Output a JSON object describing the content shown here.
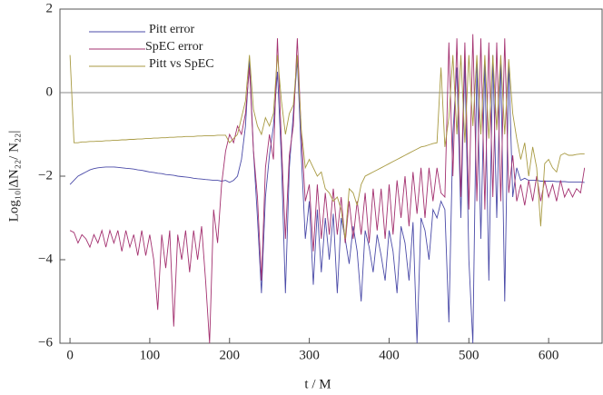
{
  "chart_data": {
    "type": "line",
    "xlabel": "t / M",
    "ylabel": "Log₁₀|ΔN₂₂/ N₂₂|",
    "xlim": [
      -12.6,
      667
    ],
    "ylim": [
      -6,
      2
    ],
    "xticks": [
      0,
      100,
      200,
      300,
      400,
      500,
      600
    ],
    "yticks": [
      {
        "value": -6,
        "label": "−6"
      },
      {
        "value": -4,
        "label": "−4"
      },
      {
        "value": -2,
        "label": "−2"
      },
      0,
      2
    ],
    "hline": 0,
    "legend": "upper left",
    "x": [
      0,
      5,
      10,
      15,
      20,
      25,
      30,
      35,
      40,
      45,
      50,
      55,
      60,
      65,
      70,
      75,
      80,
      85,
      90,
      95,
      100,
      105,
      110,
      115,
      120,
      125,
      130,
      135,
      140,
      145,
      150,
      155,
      160,
      165,
      170,
      175,
      180,
      185,
      190,
      195,
      200,
      205,
      210,
      215,
      220,
      225,
      230,
      235,
      240,
      245,
      250,
      255,
      260,
      265,
      270,
      275,
      280,
      285,
      290,
      295,
      300,
      305,
      310,
      315,
      320,
      325,
      330,
      335,
      340,
      345,
      350,
      355,
      360,
      365,
      370,
      375,
      380,
      385,
      390,
      395,
      400,
      405,
      410,
      415,
      420,
      425,
      430,
      435,
      440,
      445,
      450,
      455,
      460,
      465,
      470,
      475,
      480,
      485,
      490,
      495,
      500,
      505,
      510,
      515,
      520,
      525,
      530,
      535,
      540,
      545,
      550,
      555,
      560,
      565,
      570,
      575,
      580,
      585,
      590,
      595,
      600,
      605,
      610,
      615,
      620,
      625,
      630,
      635,
      640,
      645
    ],
    "series": [
      {
        "name": "Pitt error",
        "color": "#4b4ba8",
        "values": [
          -2.2,
          -2.1,
          -2.0,
          -1.95,
          -1.9,
          -1.85,
          -1.82,
          -1.8,
          -1.79,
          -1.78,
          -1.78,
          -1.78,
          -1.79,
          -1.8,
          -1.81,
          -1.82,
          -1.83,
          -1.85,
          -1.86,
          -1.88,
          -1.9,
          -1.91,
          -1.93,
          -1.94,
          -1.96,
          -1.97,
          -1.98,
          -2.0,
          -2.01,
          -2.02,
          -2.03,
          -2.05,
          -2.06,
          -2.07,
          -2.08,
          -2.09,
          -2.1,
          -2.1,
          -2.12,
          -2.1,
          -2.15,
          -2.1,
          -2.0,
          -1.6,
          -0.8,
          0.8,
          -1.4,
          -3.0,
          -4.8,
          -2.5,
          -1.5,
          -0.8,
          0.5,
          -1.6,
          -4.8,
          -1.8,
          -0.5,
          0.8,
          -1.5,
          -3.5,
          -2.6,
          -4.6,
          -2.8,
          -4.3,
          -3.0,
          -4.0,
          -2.9,
          -4.8,
          -3.0,
          -3.5,
          -4.1,
          -3.2,
          -3.8,
          -5.0,
          -3.3,
          -3.7,
          -4.3,
          -3.4,
          -3.9,
          -4.5,
          -3.3,
          -3.8,
          -4.8,
          -3.2,
          -3.6,
          -4.5,
          -3.1,
          -6.0,
          -3.0,
          -3.3,
          -4.0,
          -2.8,
          -3.0,
          -2.6,
          -2.8,
          -5.5,
          -1.0,
          0.6,
          -3.0,
          0.8,
          -4.0,
          -6.0,
          0.7,
          -3.5,
          0.8,
          -4.5,
          0.9,
          -3.0,
          0.8,
          -5.0,
          0.7,
          -2.5,
          -1.8,
          -2.1,
          -2.05,
          -2.1,
          -2.1,
          -2.1,
          -2.12,
          -2.12,
          -2.12,
          -2.12,
          -2.13,
          -2.13,
          -2.13,
          -2.14,
          -2.14,
          -2.14,
          -2.14,
          -2.15
        ]
      },
      {
        "name": "SpEC error",
        "color": "#a3306f",
        "values": [
          -3.3,
          -3.35,
          -3.6,
          -3.4,
          -3.5,
          -3.7,
          -3.4,
          -3.6,
          -3.3,
          -3.7,
          -3.3,
          -3.6,
          -3.3,
          -3.8,
          -3.3,
          -3.7,
          -3.4,
          -3.9,
          -3.3,
          -3.9,
          -3.4,
          -4.0,
          -5.2,
          -3.4,
          -4.2,
          -3.3,
          -5.6,
          -3.4,
          -4.0,
          -3.3,
          -4.3,
          -3.3,
          -4.0,
          -3.2,
          -4.5,
          -6.0,
          -2.8,
          -3.6,
          -2.2,
          -1.4,
          -1.0,
          -1.2,
          -0.8,
          -1.0,
          -0.5,
          0.6,
          -1.4,
          -2.5,
          -4.5,
          -1.8,
          -1.0,
          -1.6,
          1.3,
          -1.2,
          -3.5,
          -1.5,
          -0.8,
          1.3,
          -1.0,
          -2.6,
          -2.2,
          -3.8,
          -2.2,
          -3.5,
          -2.4,
          -3.4,
          -2.3,
          -3.4,
          -2.5,
          -3.6,
          -2.6,
          -3.5,
          -2.6,
          -3.4,
          -2.4,
          -3.6,
          -2.3,
          -3.3,
          -2.3,
          -3.5,
          -2.2,
          -3.4,
          -2.1,
          -3.0,
          -2.0,
          -3.2,
          -1.9,
          -2.9,
          -1.8,
          -3.0,
          -1.8,
          -2.6,
          -1.8,
          -2.4,
          -2.5,
          1.2,
          -2.0,
          1.3,
          -2.5,
          1.2,
          -2.8,
          1.4,
          -2.6,
          1.3,
          -2.8,
          1.2,
          -2.5,
          1.2,
          -2.6,
          1.3,
          -2.4,
          -1.5,
          -2.6,
          -2.2,
          -2.7,
          -2.1,
          -2.6,
          -2.0,
          -2.6,
          -2.1,
          -2.5,
          -2.2,
          -2.6,
          -2.1,
          -2.5,
          -2.3,
          -2.5,
          -2.3,
          -2.4,
          -1.8
        ]
      },
      {
        "name": "Pitt vs SpEC",
        "color": "#a89a42",
        "values": [
          0.9,
          -1.2,
          -1.2,
          -1.18,
          -1.18,
          -1.17,
          -1.17,
          -1.16,
          -1.16,
          -1.15,
          -1.15,
          -1.14,
          -1.14,
          -1.13,
          -1.13,
          -1.12,
          -1.12,
          -1.11,
          -1.11,
          -1.1,
          -1.1,
          -1.09,
          -1.09,
          -1.08,
          -1.08,
          -1.07,
          -1.07,
          -1.06,
          -1.06,
          -1.05,
          -1.05,
          -1.05,
          -1.04,
          -1.04,
          -1.03,
          -1.03,
          -1.03,
          -1.02,
          -1.02,
          -1.02,
          -1.2,
          -1.1,
          -1.0,
          -0.6,
          -0.2,
          0.9,
          -0.4,
          -0.8,
          -1.0,
          -0.6,
          -0.8,
          -0.5,
          0.9,
          -0.2,
          -1.0,
          -0.5,
          -0.3,
          0.9,
          -0.9,
          -1.8,
          -1.6,
          -1.8,
          -2.0,
          -1.9,
          -2.3,
          -2.4,
          -2.6,
          -2.5,
          -2.8,
          -3.5,
          -2.3,
          -2.4,
          -2.7,
          -2.2,
          -2.0,
          -1.95,
          -1.9,
          -1.85,
          -1.8,
          -1.75,
          -1.7,
          -1.65,
          -1.6,
          -1.55,
          -1.5,
          -1.45,
          -1.4,
          -1.35,
          -1.3,
          -1.28,
          -1.25,
          -1.22,
          -1.2,
          0.6,
          -1.3,
          -0.6,
          0.9,
          -1.0,
          0.9,
          -1.2,
          0.9,
          -0.8,
          0.9,
          -1.0,
          0.9,
          -1.1,
          0.9,
          -0.9,
          0.9,
          -1.0,
          0.8,
          -0.5,
          -1.1,
          -1.6,
          -1.2,
          -2.0,
          -1.3,
          -1.8,
          -3.2,
          -1.7,
          -1.6,
          -1.8,
          -1.9,
          -1.5,
          -1.45,
          -1.5,
          -1.5,
          -1.48,
          -1.47,
          -1.47
        ]
      }
    ]
  }
}
